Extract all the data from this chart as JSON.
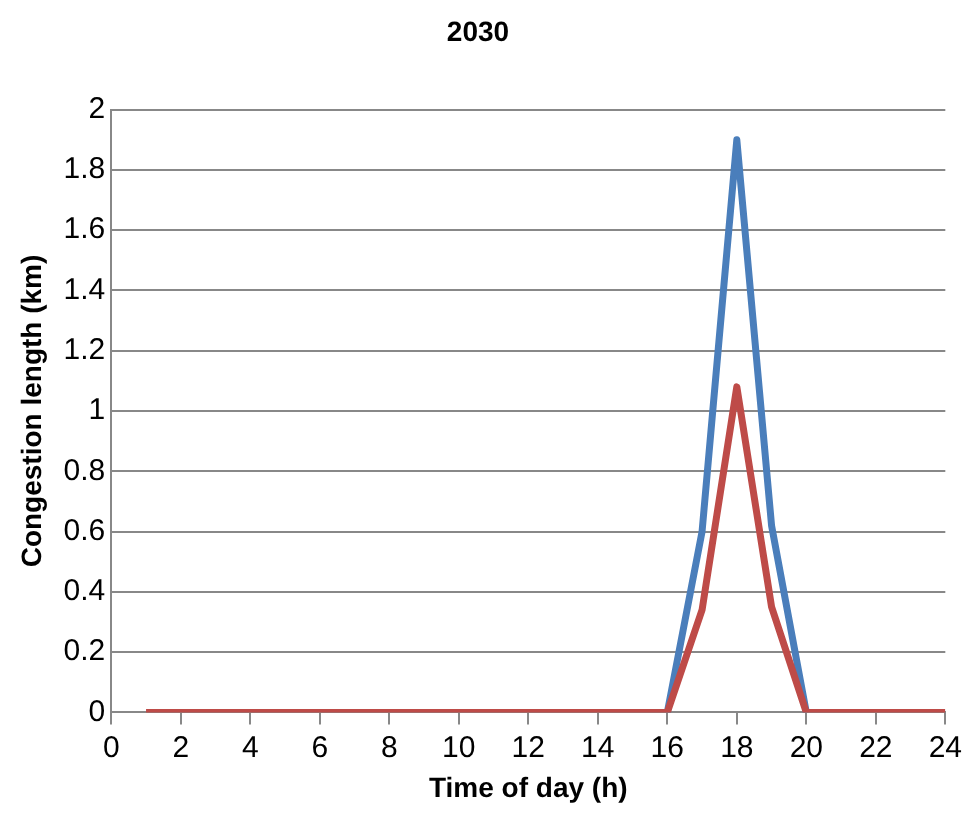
{
  "chart_data": {
    "type": "line",
    "title": "2030",
    "xlabel": "Time of day (h)",
    "ylabel": "Congestion length (km)",
    "x": [
      1,
      2,
      3,
      4,
      5,
      6,
      7,
      8,
      9,
      10,
      11,
      12,
      13,
      14,
      15,
      16,
      17,
      18,
      19,
      20,
      21,
      22,
      23,
      24
    ],
    "series": [
      {
        "color": "#4a7ebb",
        "values": [
          null,
          null,
          null,
          null,
          null,
          null,
          null,
          null,
          null,
          null,
          null,
          null,
          null,
          null,
          null,
          0,
          0.6,
          1.9,
          0.62,
          0,
          null,
          null,
          null,
          null
        ]
      },
      {
        "color": "#be4b48",
        "values": [
          0,
          0,
          0,
          0,
          0,
          0,
          0,
          0,
          0,
          0,
          0,
          0,
          0,
          0,
          0,
          0,
          0.34,
          1.08,
          0.35,
          0,
          0,
          0,
          0,
          0
        ]
      }
    ],
    "xlim": [
      0,
      24
    ],
    "xticks": [
      0,
      2,
      4,
      6,
      8,
      10,
      12,
      14,
      16,
      18,
      20,
      22,
      24
    ],
    "ylim": [
      0,
      2
    ],
    "yticks": [
      0,
      0.2,
      0.4,
      0.6,
      0.8,
      1,
      1.2,
      1.4,
      1.6,
      1.8,
      2
    ],
    "grid": "y",
    "legend": false,
    "marker": "none",
    "line_style": "solid"
  }
}
